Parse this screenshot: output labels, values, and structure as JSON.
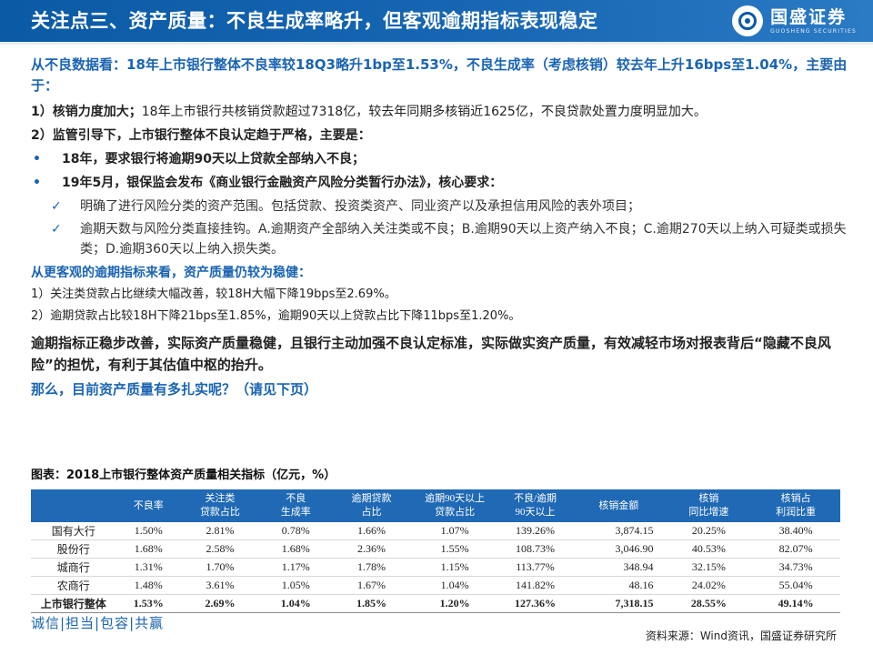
{
  "header": {
    "title": "关注点三、资产质量：不良生成率略升，但客观逾期指标表现稳定",
    "logo_cn": "国盛证券",
    "logo_en": "GUOSHENG SECURITIES"
  },
  "intro": "从不良数据看：18年上市银行整体不良率较18Q3略升1bp至1.53%，不良生成率（考虑核销）较去年上升16bps至1.04%，主要由于：",
  "point1": {
    "label": "1）核销力度加大；",
    "text": "18年上市银行共核销贷款超过7318亿，较去年同期多核销近1625亿，不良贷款处置力度明显加大。"
  },
  "point2": "2）监管引导下，上市银行整体不良认定趋于严格，主要是：",
  "bullets": [
    "18年，要求银行将逾期90天以上贷款全部纳入不良；",
    "19年5月，银保监会发布《商业银行金融资产风险分类暂行办法》，核心要求："
  ],
  "checks": [
    "明确了进行风险分类的资产范围。包括贷款、投资类资产、同业资产以及承担信用风险的表外项目；",
    "逾期天数与风险分类直接挂钩。A.逾期资产全部纳入关注类或不良；B.逾期90天以上资产纳入不良；C.逾期270天以上纳入可疑类或损失类；D.逾期360天以上纳入损失类。"
  ],
  "section2": {
    "head": "从更客观的逾期指标来看，资产质量仍较为稳健：",
    "items": [
      "1）关注类贷款占比继续大幅改善，较18H大幅下降19bps至2.69%。",
      "2）逾期贷款占比较18H下降21bps至1.85%，逾期90天以上贷款占比下降11bps至1.20%。"
    ]
  },
  "conclusion": "逾期指标正稳步改善，实际资产质量稳健，且银行主动加强不良认定标准，实际做实资产质量，有效减轻市场对报表背后“隐藏不良风险”的担忧，有利于其估值中枢的抬升。",
  "question": "那么，目前资产质量有多扎实呢？（请见下页）",
  "table": {
    "caption": "图表：2018上市银行整体资产质量相关指标（亿元，%）",
    "headers": [
      "",
      "不良率",
      "关注类\n贷款占比",
      "不良\n生成率",
      "逾期贷款\n占比",
      "逾期90天以上\n贷款占比",
      "不良/逾期\n90天以上",
      "核销金额",
      "核销\n同比增速",
      "核销占\n利润比重"
    ],
    "rows": [
      [
        "国有大行",
        "1.50%",
        "2.81%",
        "0.78%",
        "1.66%",
        "1.07%",
        "139.26%",
        "3,874.15",
        "20.25%",
        "38.40%"
      ],
      [
        "股份行",
        "1.68%",
        "2.58%",
        "1.68%",
        "2.36%",
        "1.55%",
        "108.73%",
        "3,046.90",
        "40.53%",
        "82.07%"
      ],
      [
        "城商行",
        "1.31%",
        "1.70%",
        "1.17%",
        "1.78%",
        "1.15%",
        "113.77%",
        "348.94",
        "32.15%",
        "34.73%"
      ],
      [
        "农商行",
        "1.48%",
        "3.61%",
        "1.05%",
        "1.67%",
        "1.04%",
        "141.82%",
        "48.16",
        "24.02%",
        "55.04%"
      ]
    ],
    "total": [
      "上市银行整体",
      "1.53%",
      "2.69%",
      "1.04%",
      "1.85%",
      "1.20%",
      "127.36%",
      "7,318.15",
      "28.55%",
      "49.14%"
    ]
  },
  "slogan": "诚信|担当|包容|共赢",
  "source": "资料来源：Wind资讯，国盛证券研究所",
  "colors": {
    "header_blue": "#0a5aa6",
    "accent_blue": "#1a64b2",
    "table_header": "#1f69b5"
  }
}
